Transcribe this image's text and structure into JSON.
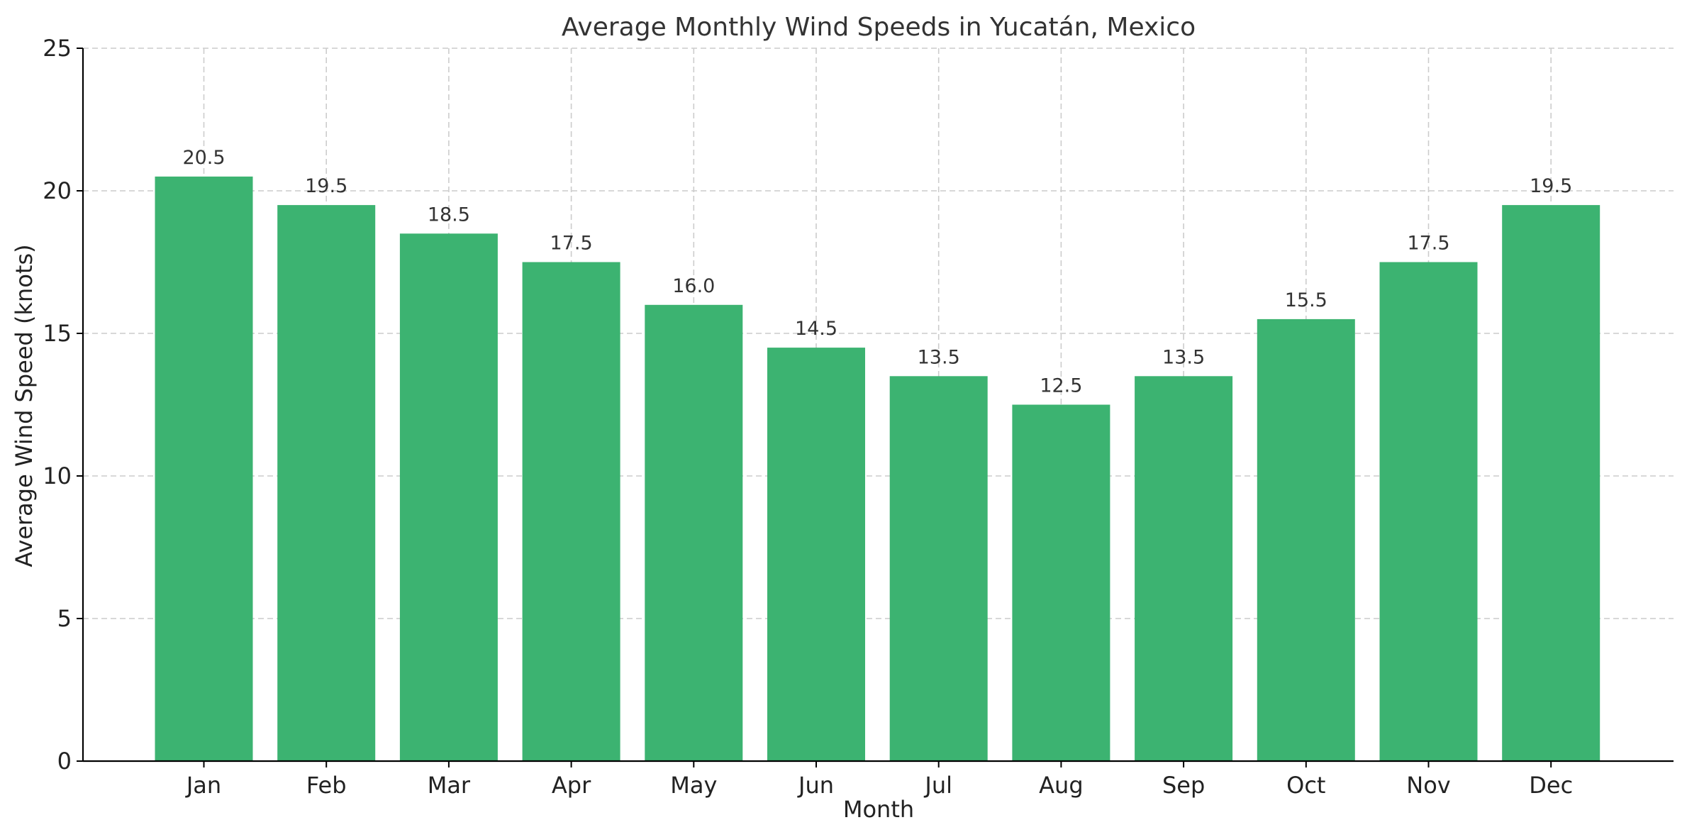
{
  "chart_data": {
    "type": "bar",
    "title": "Average Monthly Wind Speeds in Yucatán, Mexico",
    "xlabel": "Month",
    "ylabel": "Average Wind Speed (knots)",
    "categories": [
      "Jan",
      "Feb",
      "Mar",
      "Apr",
      "May",
      "Jun",
      "Jul",
      "Aug",
      "Sep",
      "Oct",
      "Nov",
      "Dec"
    ],
    "values": [
      20.5,
      19.5,
      18.5,
      17.5,
      16.0,
      14.5,
      13.5,
      12.5,
      13.5,
      15.5,
      17.5,
      19.5
    ],
    "data_labels": [
      "20.5",
      "19.5",
      "18.5",
      "17.5",
      "16.0",
      "14.5",
      "13.5",
      "12.5",
      "13.5",
      "15.5",
      "17.5",
      "19.5"
    ],
    "ylim": [
      0,
      25
    ],
    "yticks": [
      0,
      5,
      10,
      15,
      20,
      25
    ],
    "ytick_labels": [
      "0",
      "5",
      "10",
      "15",
      "20",
      "25"
    ],
    "grid": true,
    "legend": "none",
    "bar_color": "#3cb371",
    "grid_color": "#cccccc"
  }
}
